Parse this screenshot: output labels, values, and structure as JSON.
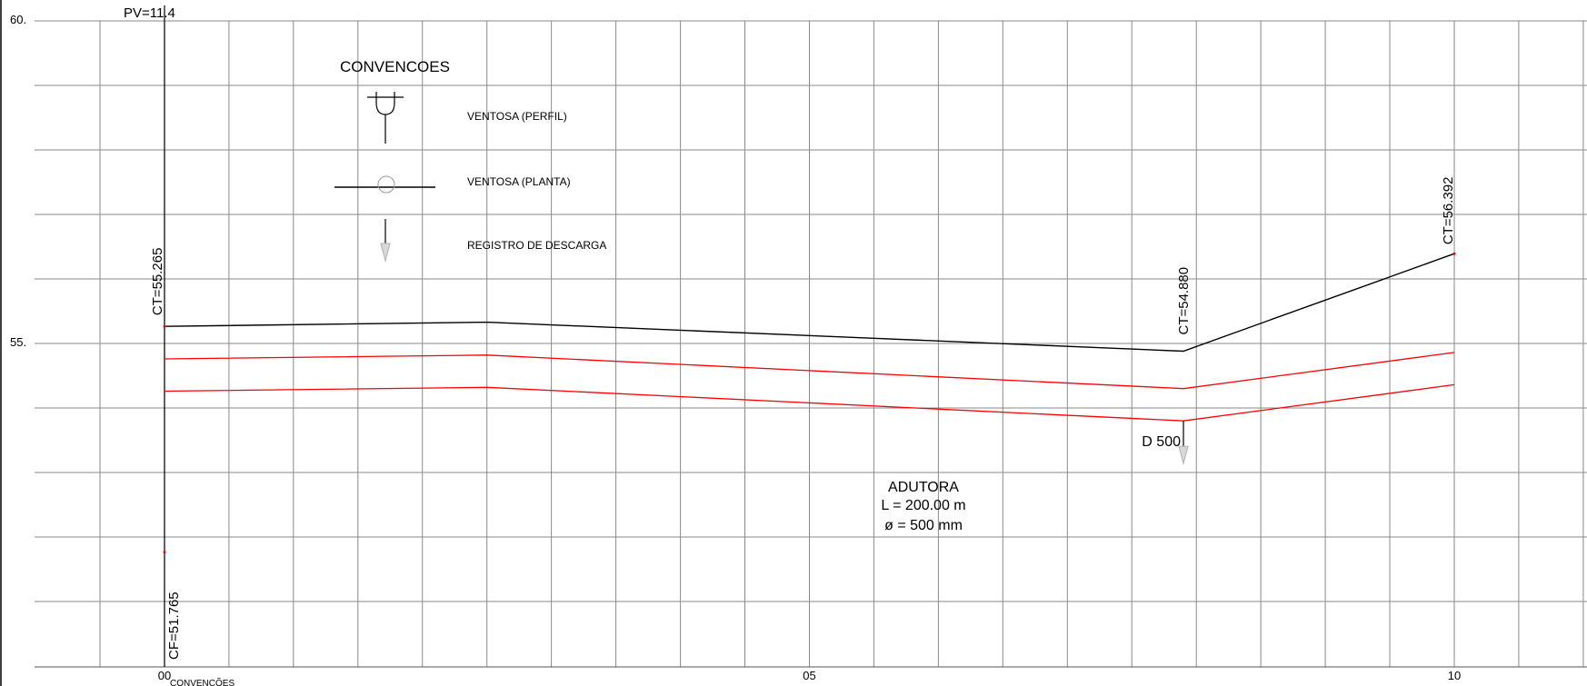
{
  "profile_chart": {
    "y_ticks": [
      {
        "value": 60,
        "label": "60."
      },
      {
        "value": 55,
        "label": "55."
      }
    ],
    "x_ticks": [
      {
        "value": 0,
        "label": "00"
      },
      {
        "value": 5,
        "label": "05"
      },
      {
        "value": 10,
        "label": "10"
      }
    ],
    "x_tick_extra": "CONVENÇÕES",
    "pv_label": "PV=11.4",
    "ground_line": {
      "color": "#000000",
      "points": [
        [
          0,
          55.265
        ],
        [
          2.5,
          55.33
        ],
        [
          5.5,
          55.08
        ],
        [
          7.9,
          54.88
        ],
        [
          10,
          56.392
        ]
      ]
    },
    "pipe_top": {
      "color": "#ff0000",
      "points": [
        [
          0,
          54.76
        ],
        [
          2.5,
          54.82
        ],
        [
          7.9,
          54.3
        ],
        [
          10,
          54.86
        ]
      ]
    },
    "pipe_bottom": {
      "color": "#ff0000",
      "points": [
        [
          0,
          54.26
        ],
        [
          2.5,
          54.32
        ],
        [
          7.9,
          53.8
        ],
        [
          10,
          54.36
        ]
      ]
    },
    "elevation_labels": [
      {
        "x": 0,
        "y": 55.265,
        "text": "CT=55.265"
      },
      {
        "x": 7.9,
        "y": 54.88,
        "text": "CT=54.880"
      },
      {
        "x": 10,
        "y": 56.392,
        "text": "CT=56.392"
      },
      {
        "x": 0,
        "y": 51.765,
        "text": "CF=51.765"
      }
    ],
    "discharge": {
      "x": 7.9,
      "label": "D 500"
    },
    "pipe_note": [
      "ADUTORA",
      "L = 200.00 m",
      "ø = 500 mm"
    ]
  },
  "legend": {
    "title": "CONVENCOES",
    "items": [
      {
        "icon": "ventosa-perfil-icon",
        "label": "VENTOSA (PERFIL)"
      },
      {
        "icon": "ventosa-planta-icon",
        "label": "VENTOSA (PLANTA)"
      },
      {
        "icon": "registro-descarga-icon",
        "label": "REGISTRO DE DESCARGA"
      }
    ]
  }
}
